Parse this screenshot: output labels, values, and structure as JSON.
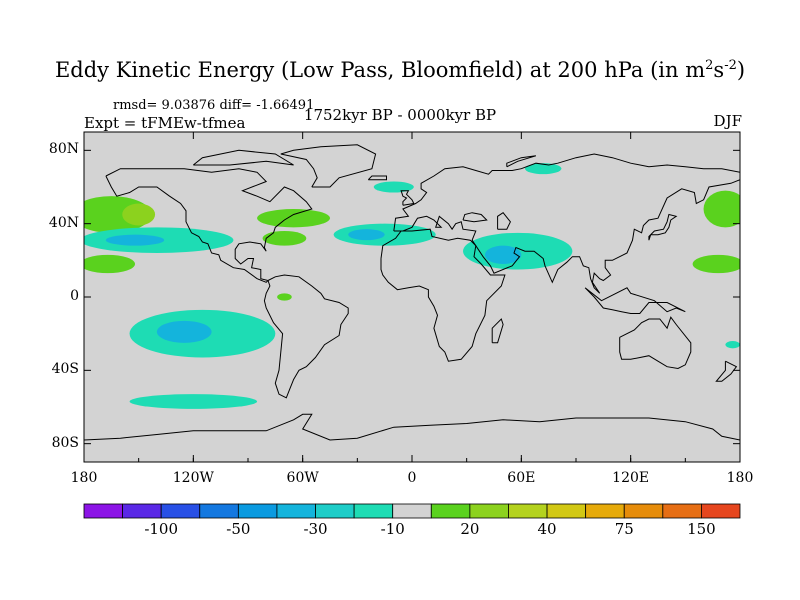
{
  "title": {
    "main": "Eddy Kinetic Energy (Low Pass, Bloomfield) at 200 hPa (in m",
    "sup1": "2",
    "mid": "s",
    "sup2": "-2",
    "end": ")"
  },
  "stats": "rmsd= 9.03876 diff= -1.66491",
  "expt": "Expt = tFMEw-tfmea",
  "period": "1752kyr BP - 0000kyr BP",
  "season": "DJF",
  "map": {
    "lat_ticks": [
      {
        "value": 80,
        "label": "80N"
      },
      {
        "value": 40,
        "label": "40N"
      },
      {
        "value": 0,
        "label": "0"
      },
      {
        "value": -40,
        "label": "40S"
      },
      {
        "value": -80,
        "label": "80S"
      }
    ],
    "lon_ticks": [
      {
        "value": -180,
        "label": "180"
      },
      {
        "value": -120,
        "label": "120W"
      },
      {
        "value": -60,
        "label": "60W"
      },
      {
        "value": 0,
        "label": "0"
      },
      {
        "value": 60,
        "label": "60E"
      },
      {
        "value": 120,
        "label": "120E"
      },
      {
        "value": 180,
        "label": "180"
      }
    ],
    "background_color": "#d3d3d3"
  },
  "colorbar": {
    "colors": [
      "#8c14e6",
      "#5a28e6",
      "#2850e6",
      "#1478e0",
      "#0a9ae0",
      "#14b4dc",
      "#1ecdc8",
      "#1edcb4",
      "#d3d3d3",
      "#5ad21e",
      "#8cd21e",
      "#b4d21e",
      "#d2c814",
      "#e6aa0a",
      "#e68c0a",
      "#e66e14",
      "#e6461e"
    ],
    "labels": [
      {
        "index": 2,
        "text": "-100"
      },
      {
        "index": 4,
        "text": "-50"
      },
      {
        "index": 6,
        "text": "-30"
      },
      {
        "index": 8,
        "text": "-10"
      },
      {
        "index": 10,
        "text": "20"
      },
      {
        "index": 12,
        "text": "40"
      },
      {
        "index": 14,
        "text": "75"
      },
      {
        "index": 16,
        "text": "150"
      }
    ]
  },
  "anomaly_regions": [
    {
      "type": "positive",
      "color": "#5ad21e",
      "lon": -165,
      "lat": 45,
      "rlon": 22,
      "rlat": 10
    },
    {
      "type": "positive",
      "color": "#8cd21e",
      "lon": -150,
      "lat": 45,
      "rlon": 9,
      "rlat": 6
    },
    {
      "type": "negative",
      "color": "#1edcb4",
      "lon": -140,
      "lat": 31,
      "rlon": 42,
      "rlat": 7
    },
    {
      "type": "negative",
      "color": "#14b4dc",
      "lon": -152,
      "lat": 31,
      "rlon": 16,
      "rlat": 3
    },
    {
      "type": "positive",
      "color": "#5ad21e",
      "lon": -167,
      "lat": 18,
      "rlon": 15,
      "rlat": 5
    },
    {
      "type": "positive",
      "color": "#5ad21e",
      "lon": -65,
      "lat": 43,
      "rlon": 20,
      "rlat": 5
    },
    {
      "type": "positive",
      "color": "#5ad21e",
      "lon": -70,
      "lat": 32,
      "rlon": 12,
      "rlat": 4
    },
    {
      "type": "negative",
      "color": "#1edcb4",
      "lon": -15,
      "lat": 34,
      "rlon": 28,
      "rlat": 6
    },
    {
      "type": "negative",
      "color": "#14b4dc",
      "lon": -25,
      "lat": 34,
      "rlon": 10,
      "rlat": 3
    },
    {
      "type": "negative",
      "color": "#1edcb4",
      "lon": -10,
      "lat": 60,
      "rlon": 11,
      "rlat": 3
    },
    {
      "type": "negative",
      "color": "#1edcb4",
      "lon": 58,
      "lat": 25,
      "rlon": 30,
      "rlat": 10
    },
    {
      "type": "negative",
      "color": "#14b4dc",
      "lon": 50,
      "lat": 23,
      "rlon": 10,
      "rlat": 5
    },
    {
      "type": "negative",
      "color": "#1edcb4",
      "lon": 72,
      "lat": 70,
      "rlon": 10,
      "rlat": 3
    },
    {
      "type": "positive",
      "color": "#5ad21e",
      "lon": 172,
      "lat": 48,
      "rlon": 12,
      "rlat": 10
    },
    {
      "type": "positive",
      "color": "#5ad21e",
      "lon": 168,
      "lat": 18,
      "rlon": 14,
      "rlat": 5
    },
    {
      "type": "positive",
      "color": "#5ad21e",
      "lon": -70,
      "lat": 0,
      "rlon": 4,
      "rlat": 2
    },
    {
      "type": "negative",
      "color": "#1edcb4",
      "lon": -115,
      "lat": -20,
      "rlon": 40,
      "rlat": 13
    },
    {
      "type": "negative",
      "color": "#14b4dc",
      "lon": -125,
      "lat": -19,
      "rlon": 15,
      "rlat": 6
    },
    {
      "type": "negative",
      "color": "#1edcb4",
      "lon": -120,
      "lat": -57,
      "rlon": 35,
      "rlat": 4
    },
    {
      "type": "negative",
      "color": "#1edcb4",
      "lon": 176,
      "lat": -26,
      "rlon": 4,
      "rlat": 2
    }
  ]
}
